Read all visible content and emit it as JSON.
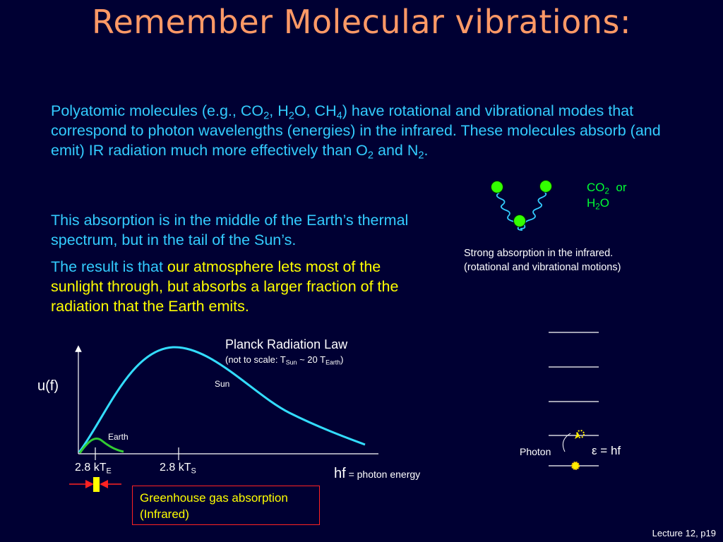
{
  "title": "Remember Molecular vibrations:",
  "intro": {
    "t1": "Polyatomic molecules (e.g., CO",
    "s1": "2",
    "t2": ", H",
    "s2": "2",
    "t3": "O, CH",
    "s3": "4",
    "t4": ") have rotational and vibrational modes that correspond to photon wavelengths (energies) in the infrared. These molecules absorb (and emit) IR radiation much more effectively than O",
    "s4": "2",
    "t5": " and N",
    "s5": "2",
    "t6": "."
  },
  "absorption_text": "This absorption is in the middle of the Earth’s thermal spectrum, but in the tail of the Sun’s.",
  "result": {
    "lead": "The result is that ",
    "highlight": "our atmosphere lets most of the sunlight through, but absorbs a larger fraction of the radiation that the Earth emits."
  },
  "molecule_label": {
    "co": "CO",
    "co_sub": "2",
    "or": "or",
    "h": "H",
    "h_sub": "2",
    "o": "O"
  },
  "molecule_caption": {
    "line1": "Strong absorption in the infrared.",
    "line2": "(rotational and vibrational motions)"
  },
  "planck": {
    "title": "Planck Radiation Law",
    "note_a": "(not to scale: T",
    "note_sub1": "Sun",
    "note_b": " ~ 20 T",
    "note_sub2": "Earth",
    "note_c": ")",
    "y_label": "u(f)",
    "x_label": "hf",
    "x_label_suffix": " = photon energy",
    "sun_label": "Sun",
    "earth_label": "Earth",
    "tick_earth": "2.8 kT",
    "tick_earth_sub": "E",
    "tick_sun": "2.8 kT",
    "tick_sun_sub": "S"
  },
  "greenhouse_box": {
    "line1": "Greenhouse gas absorption",
    "line2": "(Infrared)"
  },
  "levels": {
    "photon_label": "Photon",
    "energy_eq": "ε = hf"
  },
  "footer": "Lecture 12, p19",
  "colors": {
    "background": "#000033",
    "title": "#ff9966",
    "text_cyan": "#33ccff",
    "highlight_yellow": "#ffff00",
    "curve_cyan": "#33ddff",
    "earth_green": "#33cc33",
    "atom_green": "#33ff00",
    "box_red": "#ff2222"
  }
}
